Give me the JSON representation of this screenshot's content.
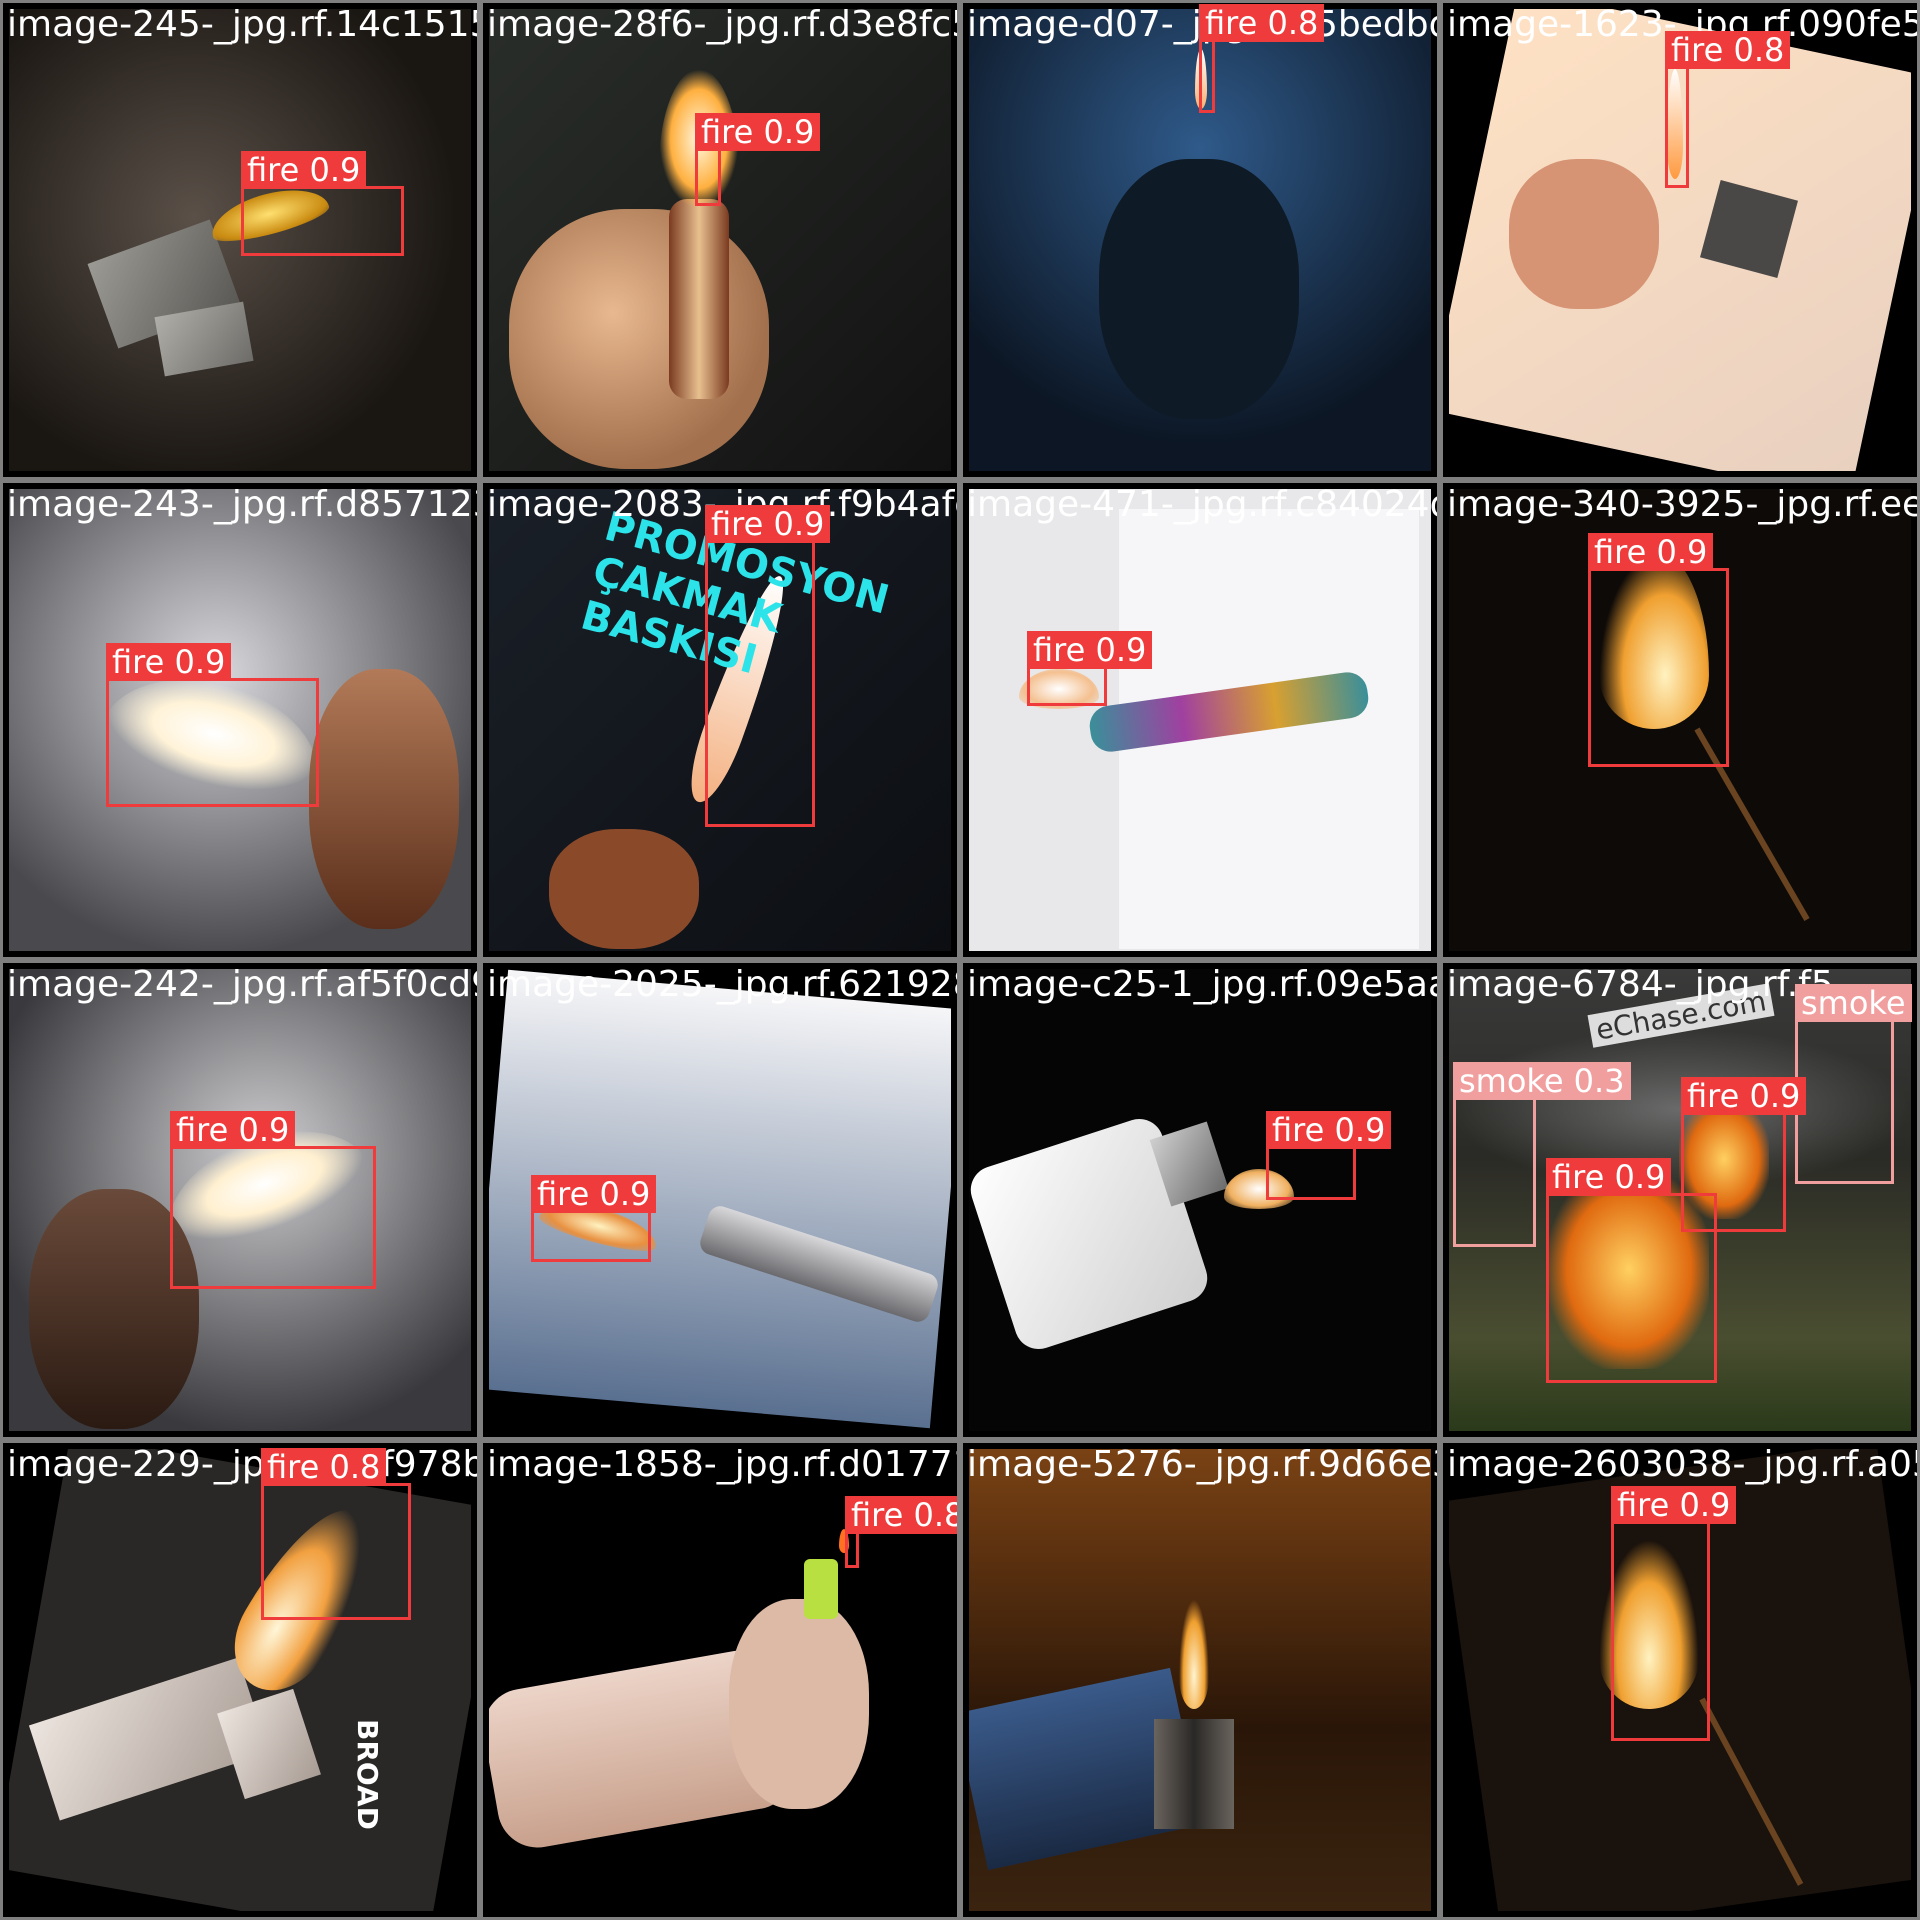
{
  "mosaic": {
    "tiles": [
      {
        "filename": "image-245-_jpg.rf.14c1515781a08a8f6dc28",
        "detections": [
          {
            "label": "fire 0.9",
            "class": "fire"
          }
        ]
      },
      {
        "filename": "image-28f6-_jpg.rf.d3e8fc575e5892d871a",
        "detections": [
          {
            "label": "fire 0.9",
            "class": "fire"
          }
        ]
      },
      {
        "filename": "image-d07-_jpg.rf.c5bedbd8afb5a623b",
        "detections": [
          {
            "label": "fire 0.8",
            "class": "fire"
          }
        ]
      },
      {
        "filename": "image-1623-_jpg.rf.090fe501",
        "detections": [
          {
            "label": "fire 0.8",
            "class": "fire"
          }
        ]
      },
      {
        "filename": "image-243-_jpg.rf.d857123c398146208938f",
        "detections": [
          {
            "label": "fire 0.9",
            "class": "fire"
          }
        ]
      },
      {
        "filename": "image-2083-_jpg.rf.f9b4afc1dafa5749771",
        "detections": [
          {
            "label": "fire 0.9",
            "class": "fire"
          }
        ]
      },
      {
        "filename": "image-471-_jpg.rf.c84024d7f00918340395",
        "detections": [
          {
            "label": "fire 0.9",
            "class": "fire"
          }
        ]
      },
      {
        "filename": "image-340-3925-_jpg.rf.ee90ef8a",
        "detections": [
          {
            "label": "fire 0.9",
            "class": "fire"
          }
        ]
      },
      {
        "filename": "image-242-_jpg.rf.af5f0cd90dd5e02025b73",
        "detections": [
          {
            "label": "fire 0.9",
            "class": "fire"
          }
        ]
      },
      {
        "filename": "image-2025-_jpg.rf.62192845989d6c125145ae",
        "detections": [
          {
            "label": "fire 0.9",
            "class": "fire"
          }
        ]
      },
      {
        "filename": "image-c25-1_jpg.rf.09e5aa7de1f83767848016",
        "detections": [
          {
            "label": "fire 0.9",
            "class": "fire"
          }
        ]
      },
      {
        "filename": "image-6784-_jpg.rf.f5",
        "detections": [
          {
            "label": "smoke 0.3",
            "class": "smoke"
          },
          {
            "label": "smoke",
            "class": "smoke"
          },
          {
            "label": "fire 0.9",
            "class": "fire"
          },
          {
            "label": "fire 0.9",
            "class": "fire"
          }
        ]
      },
      {
        "filename": "image-229-_jpg.rf.22f978bbcf41858-5bf6",
        "detections": [
          {
            "label": "fire 0.8",
            "class": "fire"
          }
        ]
      },
      {
        "filename": "image-1858-_jpg.rf.d017712686155276e712",
        "detections": [
          {
            "label": "fire 0.8",
            "class": "fire"
          }
        ]
      },
      {
        "filename": "image-5276-_jpg.rf.9d66e3176d55d603038",
        "detections": []
      },
      {
        "filename": "image-2603038-_jpg.rf.a057b080",
        "detections": [
          {
            "label": "fire 0.9",
            "class": "fire"
          }
        ]
      }
    ],
    "scene_text": {
      "promo_line_1": "PROMOSYON",
      "promo_line_2": "ÇAKMAK",
      "promo_line_3": "BASKISI",
      "watermark": "eChase.com",
      "brand": "BROAD"
    },
    "colors": {
      "fire": "#ef3b3b",
      "smoke": "#f19e9e",
      "background": "#808080"
    }
  }
}
